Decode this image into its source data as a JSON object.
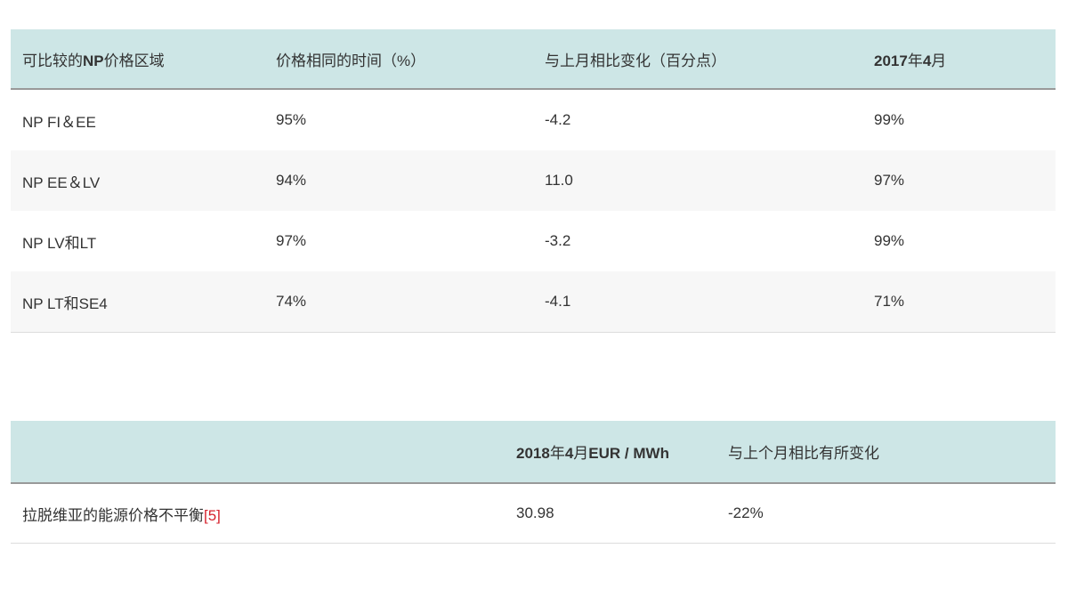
{
  "colors": {
    "header_bg": "#cde6e6",
    "header_border": "#999999",
    "row_alt_bg": "#f7f7f7",
    "row_border": "#dddddd",
    "text": "#333333",
    "footnote_red": "#d6232e"
  },
  "table1": {
    "headers": {
      "col1_pre": "可比较的",
      "col1_bold": "NP",
      "col1_post": "价格区域",
      "col2": "价格相同的时间（%）",
      "col3": "与上月相比变化（百分点）",
      "col4_year": "2017",
      "col4_year_suffix": "年",
      "col4_month": "4",
      "col4_month_suffix": "月"
    },
    "rows": [
      {
        "area": "NP FI＆EE",
        "same_price_time": "95%",
        "change_pp": "-4.2",
        "april_2017": "99%"
      },
      {
        "area": "NP EE＆LV",
        "same_price_time": "94%",
        "change_pp": "11.0",
        "april_2017": "97%"
      },
      {
        "area": "NP LV和LT",
        "same_price_time": "97%",
        "change_pp": "-3.2",
        "april_2017": "99%"
      },
      {
        "area": "NP LT和SE4",
        "same_price_time": "74%",
        "change_pp": "-4.1",
        "april_2017": "71%"
      }
    ]
  },
  "table2": {
    "headers": {
      "col1": "",
      "col2_year": "2018",
      "col2_year_suffix": "年",
      "col2_month": "4",
      "col2_month_suffix": "月",
      "col2_unit": "EUR / MWh",
      "col3": "与上个月相比有所变化"
    },
    "row": {
      "label": "拉脱维亚的能源价格不平衡",
      "footnote": "[5]",
      "value_eur_mwh": "30.98",
      "change": "-22%"
    }
  }
}
